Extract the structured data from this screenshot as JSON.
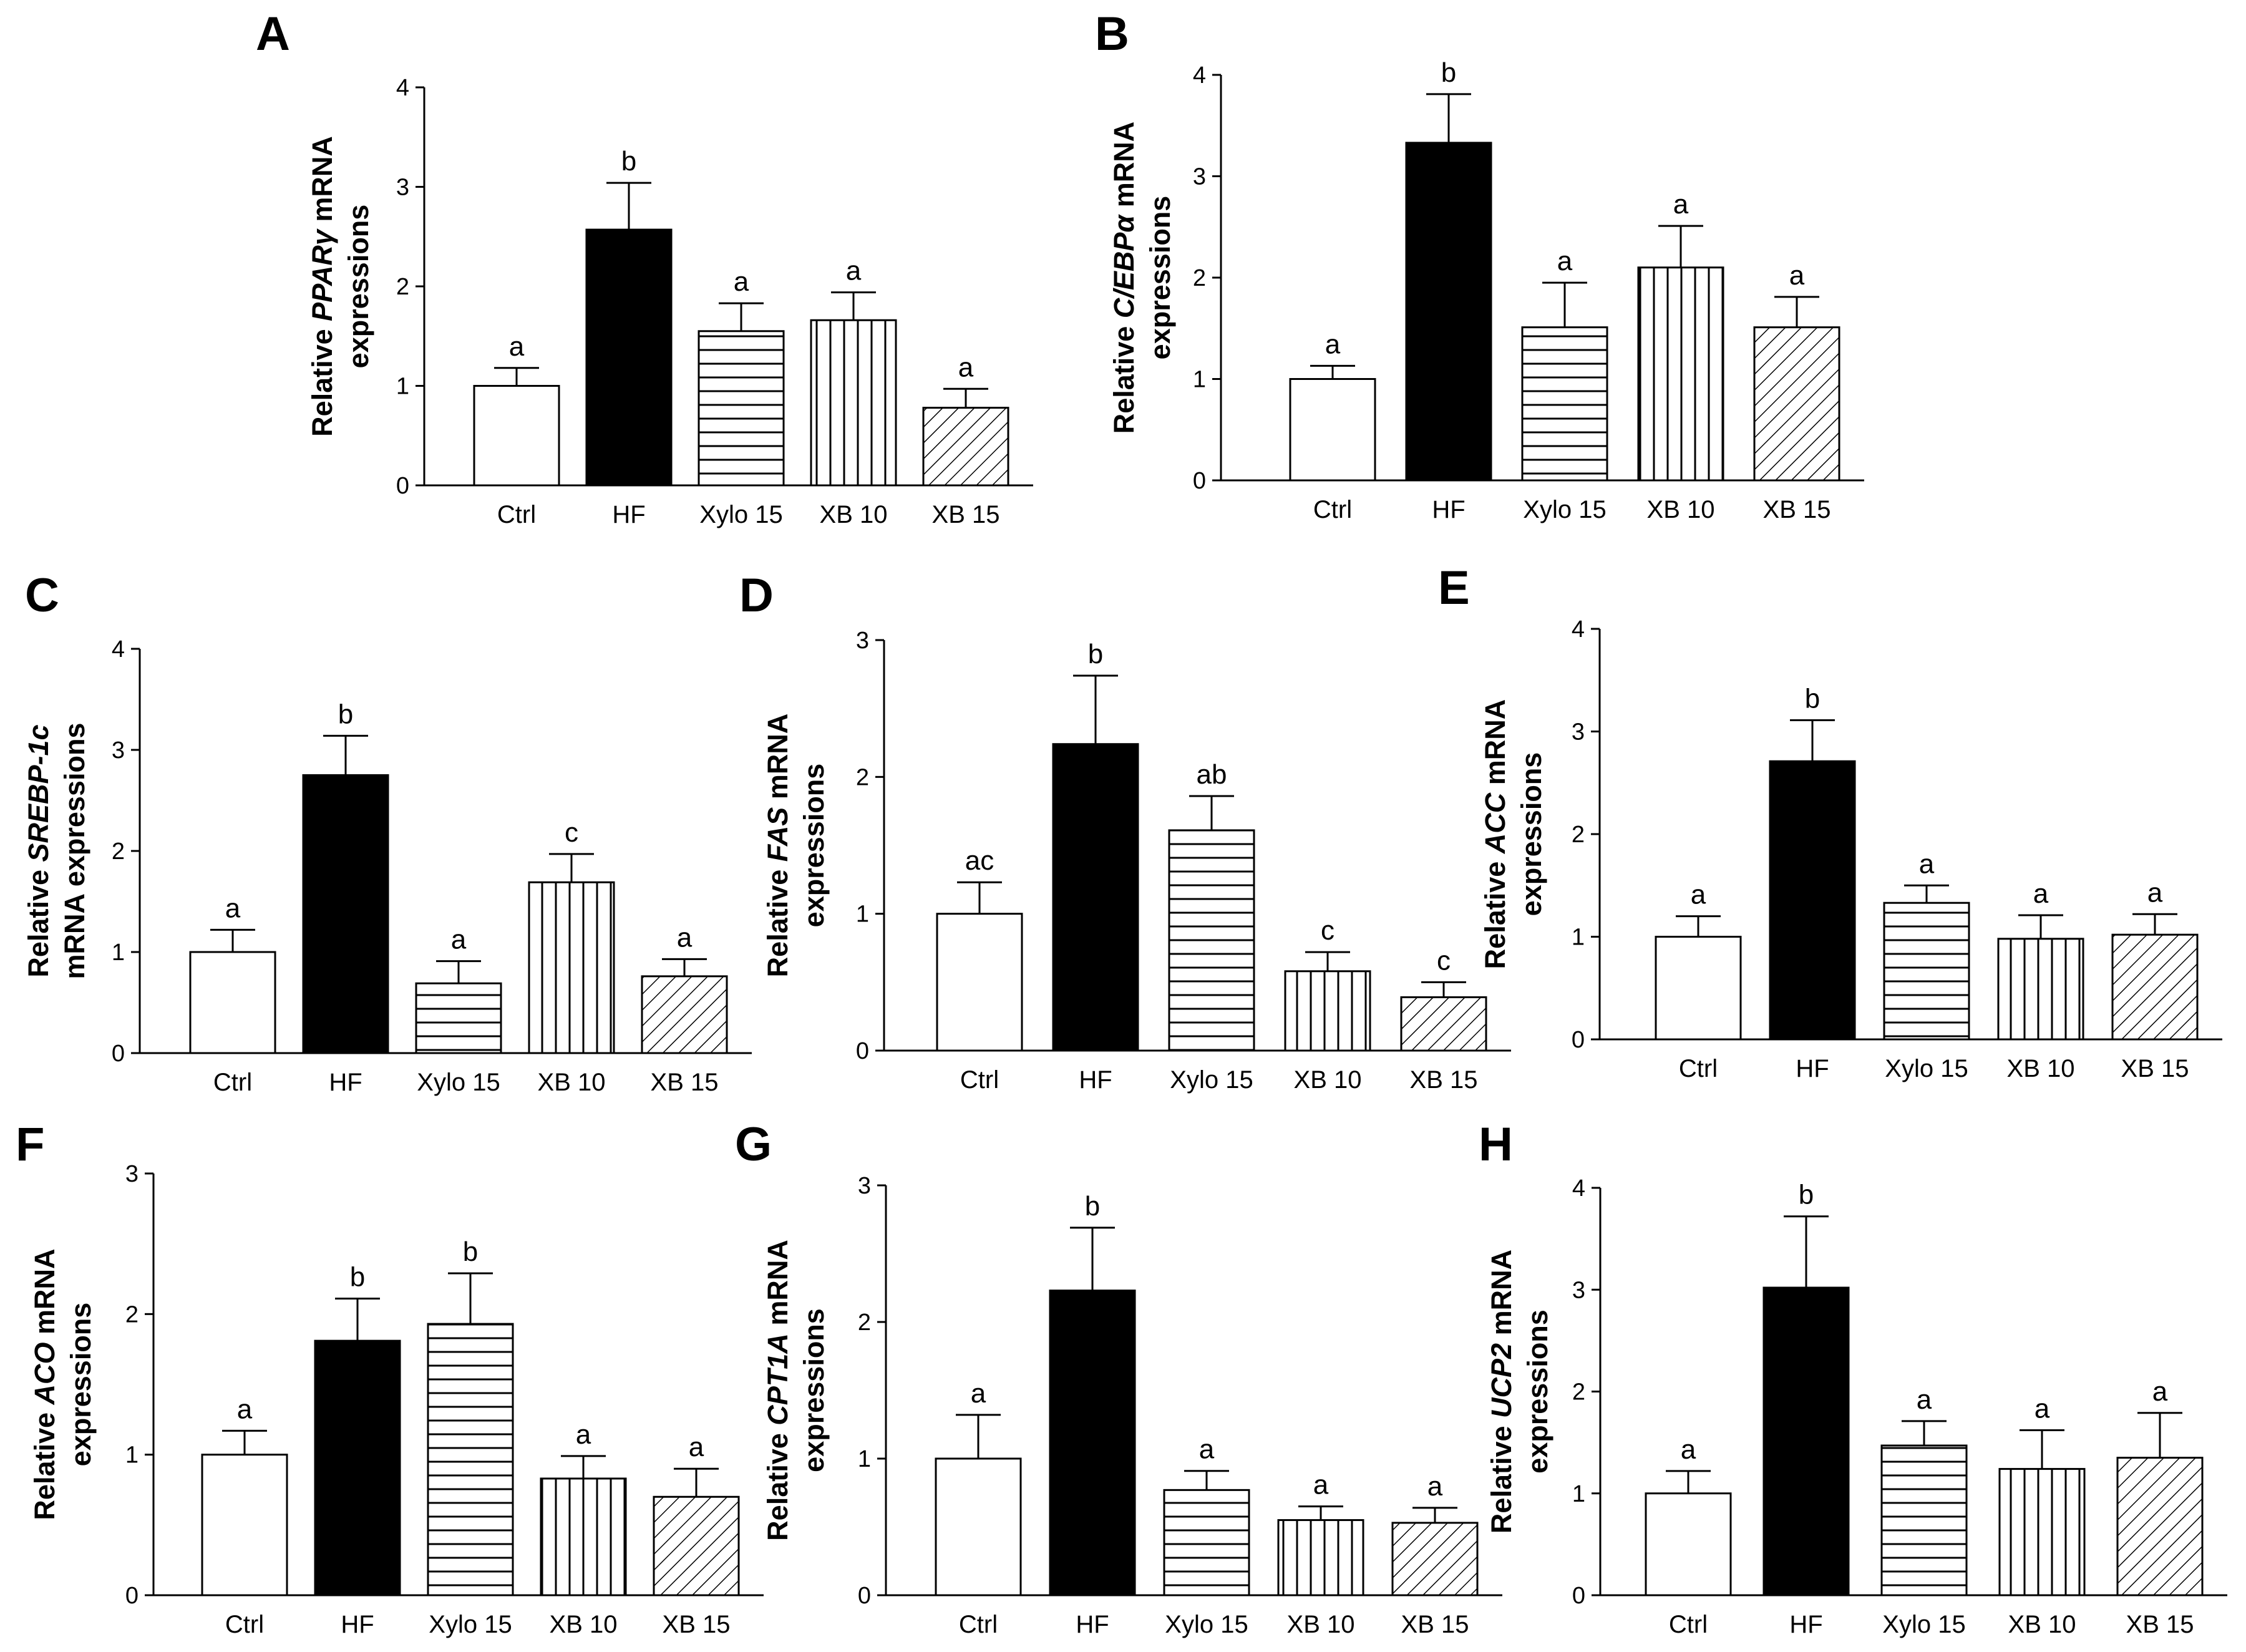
{
  "chart_data": [
    {
      "panel": "A",
      "type": "bar",
      "ylabel": {
        "pre": "Relative ",
        "gene": "PPARγ",
        "post": " mRNA",
        "line2": "expressions"
      },
      "categories": [
        "Ctrl",
        "HF",
        "Xylo 15",
        "XB 10",
        "XB 15"
      ],
      "values": [
        1.0,
        2.57,
        1.55,
        1.66,
        0.78
      ],
      "errors": [
        0.18,
        0.47,
        0.28,
        0.28,
        0.19
      ],
      "letters": [
        "a",
        "b",
        "a",
        "a",
        "a"
      ],
      "ylim": [
        0,
        4
      ],
      "yticks": [
        "0",
        "1",
        "2",
        "3",
        "4"
      ]
    },
    {
      "panel": "B",
      "type": "bar",
      "ylabel": {
        "pre": "Relative ",
        "gene": "C/EBPα",
        "post": " mRNA",
        "line2": "expressions"
      },
      "categories": [
        "Ctrl",
        "HF",
        "Xylo 15",
        "XB 10",
        "XB 15"
      ],
      "values": [
        1.0,
        3.33,
        1.51,
        2.1,
        1.51
      ],
      "errors": [
        0.13,
        0.48,
        0.44,
        0.41,
        0.3
      ],
      "letters": [
        "a",
        "b",
        "a",
        "a",
        "a"
      ],
      "ylim": [
        0,
        4
      ],
      "yticks": [
        "0",
        "1",
        "2",
        "3",
        "4"
      ]
    },
    {
      "panel": "C",
      "type": "bar",
      "ylabel": {
        "pre": "Relative ",
        "gene": "SREBP-1c",
        "post": "",
        "line2": "mRNA expressions"
      },
      "categories": [
        "Ctrl",
        "HF",
        "Xylo 15",
        "XB 10",
        "XB 15"
      ],
      "values": [
        1.0,
        2.75,
        0.69,
        1.69,
        0.76
      ],
      "errors": [
        0.22,
        0.39,
        0.22,
        0.28,
        0.17
      ],
      "letters": [
        "a",
        "b",
        "a",
        "c",
        "a"
      ],
      "ylim": [
        0,
        4
      ],
      "yticks": [
        "0",
        "1",
        "2",
        "3",
        "4"
      ]
    },
    {
      "panel": "D",
      "type": "bar",
      "ylabel": {
        "pre": "Relative ",
        "gene": "FAS",
        "post": " mRNA",
        "line2": "expressions"
      },
      "categories": [
        "Ctrl",
        "HF",
        "Xylo 15",
        "XB 10",
        "XB 15"
      ],
      "values": [
        1.0,
        2.24,
        1.61,
        0.58,
        0.39
      ],
      "errors": [
        0.23,
        0.5,
        0.25,
        0.14,
        0.11
      ],
      "letters": [
        "ac",
        "b",
        "ab",
        "c",
        "c"
      ],
      "ylim": [
        0,
        3
      ],
      "yticks": [
        "0",
        "1",
        "2",
        "3"
      ]
    },
    {
      "panel": "E",
      "type": "bar",
      "ylabel": {
        "pre": "Relative ",
        "gene": "ACC",
        "post": " mRNA",
        "line2": "expressions"
      },
      "categories": [
        "Ctrl",
        "HF",
        "Xylo 15",
        "XB 10",
        "XB 15"
      ],
      "values": [
        1.0,
        2.71,
        1.33,
        0.98,
        1.02
      ],
      "errors": [
        0.2,
        0.4,
        0.17,
        0.23,
        0.2
      ],
      "letters": [
        "a",
        "b",
        "a",
        "a",
        "a"
      ],
      "ylim": [
        0,
        4
      ],
      "yticks": [
        "0",
        "1",
        "2",
        "3",
        "4"
      ]
    },
    {
      "panel": "F",
      "type": "bar",
      "ylabel": {
        "pre": "Relative ",
        "gene": "ACO",
        "post": " mRNA",
        "line2": "expressions"
      },
      "categories": [
        "Ctrl",
        "HF",
        "Xylo 15",
        "XB 10",
        "XB 15"
      ],
      "values": [
        1.0,
        1.81,
        1.93,
        0.83,
        0.7
      ],
      "errors": [
        0.17,
        0.3,
        0.36,
        0.16,
        0.2
      ],
      "letters": [
        "a",
        "b",
        "b",
        "a",
        "a"
      ],
      "ylim": [
        0,
        3
      ],
      "yticks": [
        "0",
        "1",
        "2",
        "3"
      ]
    },
    {
      "panel": "G",
      "type": "bar",
      "ylabel": {
        "pre": "Relative ",
        "gene": "CPT1A",
        "post": " mRNA",
        "line2": "expressions"
      },
      "categories": [
        "Ctrl",
        "HF",
        "Xylo 15",
        "XB 10",
        "XB 15"
      ],
      "values": [
        1.0,
        2.23,
        0.77,
        0.55,
        0.53
      ],
      "errors": [
        0.32,
        0.46,
        0.14,
        0.1,
        0.11
      ],
      "letters": [
        "a",
        "b",
        "a",
        "a",
        "a"
      ],
      "ylim": [
        0,
        3
      ],
      "yticks": [
        "0",
        "1",
        "2",
        "3"
      ]
    },
    {
      "panel": "H",
      "type": "bar",
      "ylabel": {
        "pre": "Relative ",
        "gene": "UCP2",
        "post": " mRNA",
        "line2": "expressions"
      },
      "categories": [
        "Ctrl",
        "HF",
        "Xylo 15",
        "XB 10",
        "XB 15"
      ],
      "values": [
        1.0,
        3.02,
        1.47,
        1.24,
        1.35
      ],
      "errors": [
        0.22,
        0.7,
        0.24,
        0.38,
        0.44
      ],
      "letters": [
        "a",
        "b",
        "a",
        "a",
        "a"
      ],
      "ylim": [
        0,
        4
      ],
      "yticks": [
        "0",
        "1",
        "2",
        "3",
        "4"
      ]
    }
  ],
  "bar_styles": [
    "open",
    "solid",
    "horizontal-stripes",
    "vertical-stripes",
    "diagonal-stripes"
  ]
}
